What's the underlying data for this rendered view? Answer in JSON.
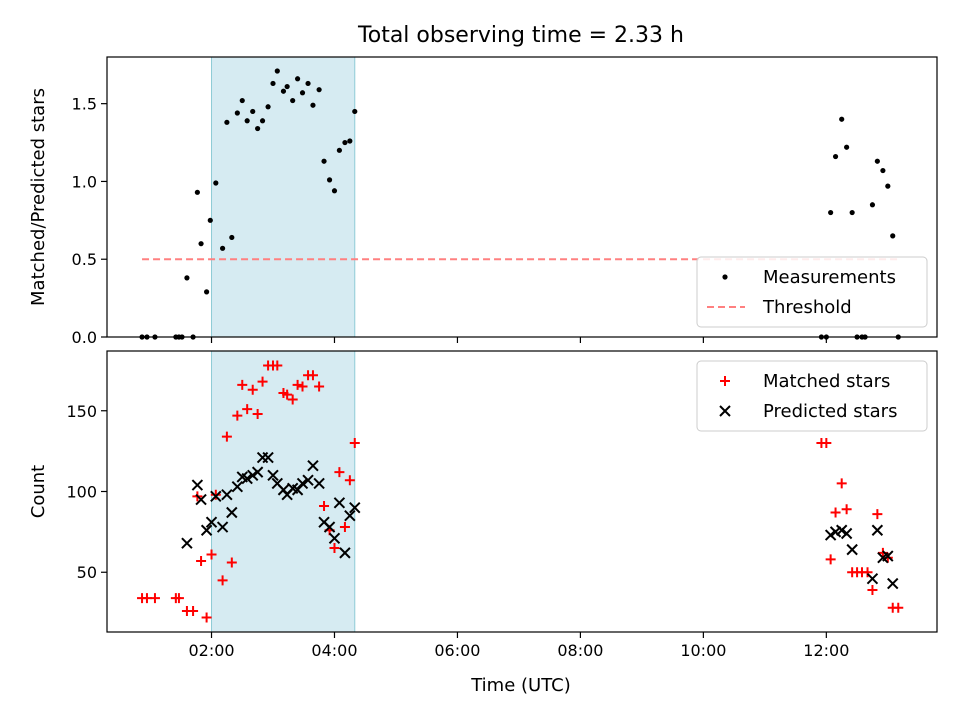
{
  "chart_data": {
    "title": "Total observing time = 2.33 h",
    "shaded_interval": {
      "start": 2.0,
      "end": 4.33,
      "color": "#add8e6"
    },
    "xlabel": "Time (UTC)",
    "xlim": [
      0.3,
      13.8
    ],
    "xticks": [
      {
        "value": 2,
        "label": "02:00"
      },
      {
        "value": 4,
        "label": "04:00"
      },
      {
        "value": 6,
        "label": "06:00"
      },
      {
        "value": 8,
        "label": "08:00"
      },
      {
        "value": 10,
        "label": "10:00"
      },
      {
        "value": 12,
        "label": "12:00"
      }
    ],
    "panels": [
      {
        "type": "scatter",
        "ylabel": "Matched/Predicted stars",
        "ylim": [
          0,
          1.8
        ],
        "yticks": [
          {
            "value": 0,
            "label": "0.0"
          },
          {
            "value": 0.5,
            "label": "0.5"
          },
          {
            "value": 1.0,
            "label": "1.0"
          },
          {
            "value": 1.5,
            "label": "1.5"
          }
        ],
        "legend": "lower-right",
        "series": [
          {
            "name": "Measurements",
            "marker": "dot",
            "color": "#000000",
            "points": [
              [
                0.87,
                0
              ],
              [
                0.95,
                0
              ],
              [
                1.08,
                0
              ],
              [
                1.42,
                0
              ],
              [
                1.47,
                0
              ],
              [
                1.52,
                0
              ],
              [
                1.6,
                0.38
              ],
              [
                1.7,
                0
              ],
              [
                1.77,
                0.93
              ],
              [
                1.83,
                0.6
              ],
              [
                1.92,
                0.29
              ],
              [
                1.98,
                0.75
              ],
              [
                2.07,
                0.99
              ],
              [
                2.18,
                0.57
              ],
              [
                2.25,
                1.38
              ],
              [
                2.33,
                0.64
              ],
              [
                2.42,
                1.44
              ],
              [
                2.5,
                1.52
              ],
              [
                2.58,
                1.39
              ],
              [
                2.67,
                1.45
              ],
              [
                2.75,
                1.34
              ],
              [
                2.83,
                1.39
              ],
              [
                2.92,
                1.48
              ],
              [
                3.0,
                1.63
              ],
              [
                3.07,
                1.71
              ],
              [
                3.17,
                1.58
              ],
              [
                3.23,
                1.61
              ],
              [
                3.32,
                1.52
              ],
              [
                3.4,
                1.66
              ],
              [
                3.48,
                1.57
              ],
              [
                3.57,
                1.63
              ],
              [
                3.65,
                1.49
              ],
              [
                3.75,
                1.59
              ],
              [
                3.83,
                1.13
              ],
              [
                3.92,
                1.01
              ],
              [
                4.0,
                0.94
              ],
              [
                4.08,
                1.2
              ],
              [
                4.17,
                1.25
              ],
              [
                4.25,
                1.26
              ],
              [
                4.33,
                1.45
              ],
              [
                11.92,
                0
              ],
              [
                12.0,
                0
              ],
              [
                12.07,
                0.8
              ],
              [
                12.15,
                1.16
              ],
              [
                12.25,
                1.4
              ],
              [
                12.33,
                1.22
              ],
              [
                12.42,
                0.8
              ],
              [
                12.5,
                0
              ],
              [
                12.58,
                0
              ],
              [
                12.63,
                0
              ],
              [
                12.75,
                0.85
              ],
              [
                12.83,
                1.13
              ],
              [
                12.92,
                1.07
              ],
              [
                13.0,
                0.97
              ],
              [
                13.08,
                0.65
              ],
              [
                13.17,
                0
              ]
            ]
          },
          {
            "name": "Threshold",
            "marker": "dashed-line",
            "color": "#ff8080",
            "points": [
              [
                0.87,
                0.5
              ],
              [
                13.17,
                0.5
              ]
            ]
          }
        ]
      },
      {
        "type": "scatter",
        "ylabel": "Count",
        "ylim": [
          13,
          187
        ],
        "yticks": [
          {
            "value": 50,
            "label": "50"
          },
          {
            "value": 100,
            "label": "100"
          },
          {
            "value": 150,
            "label": "150"
          }
        ],
        "legend": "upper-right",
        "series": [
          {
            "name": "Matched stars",
            "marker": "plus",
            "color": "#ff0000",
            "points": [
              [
                0.87,
                34
              ],
              [
                0.95,
                34
              ],
              [
                1.08,
                34
              ],
              [
                1.42,
                34
              ],
              [
                1.47,
                34
              ],
              [
                1.6,
                26
              ],
              [
                1.7,
                26
              ],
              [
                1.77,
                97
              ],
              [
                1.83,
                57
              ],
              [
                1.92,
                22
              ],
              [
                2.0,
                61
              ],
              [
                2.07,
                98
              ],
              [
                2.18,
                45
              ],
              [
                2.25,
                134
              ],
              [
                2.33,
                56
              ],
              [
                2.42,
                147
              ],
              [
                2.5,
                166
              ],
              [
                2.58,
                151
              ],
              [
                2.67,
                163
              ],
              [
                2.75,
                148
              ],
              [
                2.83,
                168
              ],
              [
                2.92,
                178
              ],
              [
                3.0,
                178
              ],
              [
                3.07,
                178
              ],
              [
                3.17,
                161
              ],
              [
                3.23,
                160
              ],
              [
                3.32,
                157
              ],
              [
                3.4,
                166
              ],
              [
                3.48,
                165
              ],
              [
                3.57,
                172
              ],
              [
                3.65,
                172
              ],
              [
                3.75,
                165
              ],
              [
                3.83,
                91
              ],
              [
                3.92,
                76
              ],
              [
                4.0,
                65
              ],
              [
                4.08,
                112
              ],
              [
                4.17,
                78
              ],
              [
                4.25,
                107
              ],
              [
                4.33,
                130
              ],
              [
                11.92,
                130
              ],
              [
                12.0,
                130
              ],
              [
                12.07,
                58
              ],
              [
                12.15,
                87
              ],
              [
                12.25,
                105
              ],
              [
                12.33,
                89
              ],
              [
                12.42,
                50
              ],
              [
                12.5,
                50
              ],
              [
                12.58,
                50
              ],
              [
                12.67,
                50
              ],
              [
                12.75,
                39
              ],
              [
                12.83,
                86
              ],
              [
                12.92,
                62
              ],
              [
                13.0,
                59
              ],
              [
                13.08,
                28
              ],
              [
                13.17,
                28
              ]
            ]
          },
          {
            "name": "Predicted stars",
            "marker": "x",
            "color": "#000000",
            "points": [
              [
                1.6,
                68
              ],
              [
                1.77,
                104
              ],
              [
                1.83,
                95
              ],
              [
                1.92,
                76
              ],
              [
                2.0,
                81
              ],
              [
                2.07,
                97
              ],
              [
                2.18,
                78
              ],
              [
                2.25,
                98
              ],
              [
                2.33,
                87
              ],
              [
                2.42,
                103
              ],
              [
                2.5,
                109
              ],
              [
                2.58,
                108
              ],
              [
                2.67,
                110
              ],
              [
                2.75,
                112
              ],
              [
                2.83,
                121
              ],
              [
                2.92,
                121
              ],
              [
                3.0,
                110
              ],
              [
                3.07,
                105
              ],
              [
                3.17,
                101
              ],
              [
                3.23,
                98
              ],
              [
                3.32,
                102
              ],
              [
                3.4,
                101
              ],
              [
                3.48,
                105
              ],
              [
                3.57,
                107
              ],
              [
                3.65,
                116
              ],
              [
                3.75,
                105
              ],
              [
                3.83,
                81
              ],
              [
                3.92,
                78
              ],
              [
                4.0,
                71
              ],
              [
                4.08,
                93
              ],
              [
                4.17,
                62
              ],
              [
                4.25,
                85
              ],
              [
                4.33,
                90
              ],
              [
                12.07,
                73
              ],
              [
                12.15,
                75
              ],
              [
                12.25,
                76
              ],
              [
                12.33,
                74
              ],
              [
                12.42,
                64
              ],
              [
                12.75,
                46
              ],
              [
                12.83,
                76
              ],
              [
                12.92,
                59
              ],
              [
                13.0,
                60
              ],
              [
                13.08,
                43
              ]
            ]
          }
        ]
      }
    ]
  }
}
